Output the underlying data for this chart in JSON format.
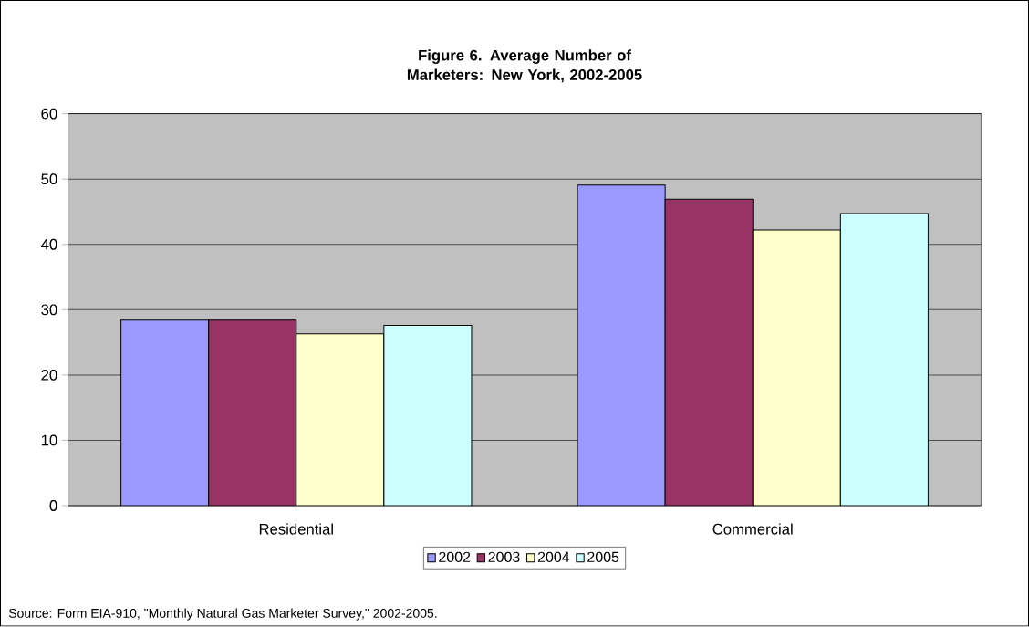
{
  "chart_data": {
    "type": "bar",
    "title": "Figure 6. Average Number of Marketers: New York, 2002-2005",
    "categories": [
      "Residential",
      "Commercial"
    ],
    "series": [
      {
        "name": "2002",
        "color": "#9999ff",
        "values": [
          28.4,
          49.1
        ]
      },
      {
        "name": "2003",
        "color": "#993366",
        "values": [
          28.4,
          46.9
        ]
      },
      {
        "name": "2004",
        "color": "#ffffcc",
        "values": [
          26.3,
          42.2
        ]
      },
      {
        "name": "2005",
        "color": "#ccffff",
        "values": [
          27.6,
          44.7
        ]
      }
    ],
    "ylim": [
      0,
      60
    ],
    "yticks": [
      0,
      10,
      20,
      30,
      40,
      50,
      60
    ],
    "grid": "y",
    "legend": "bottom",
    "annotations": [
      "Source: Form EIA-910, \"Monthly Natural Gas Marketer Survey,\" 2002-2005."
    ]
  }
}
